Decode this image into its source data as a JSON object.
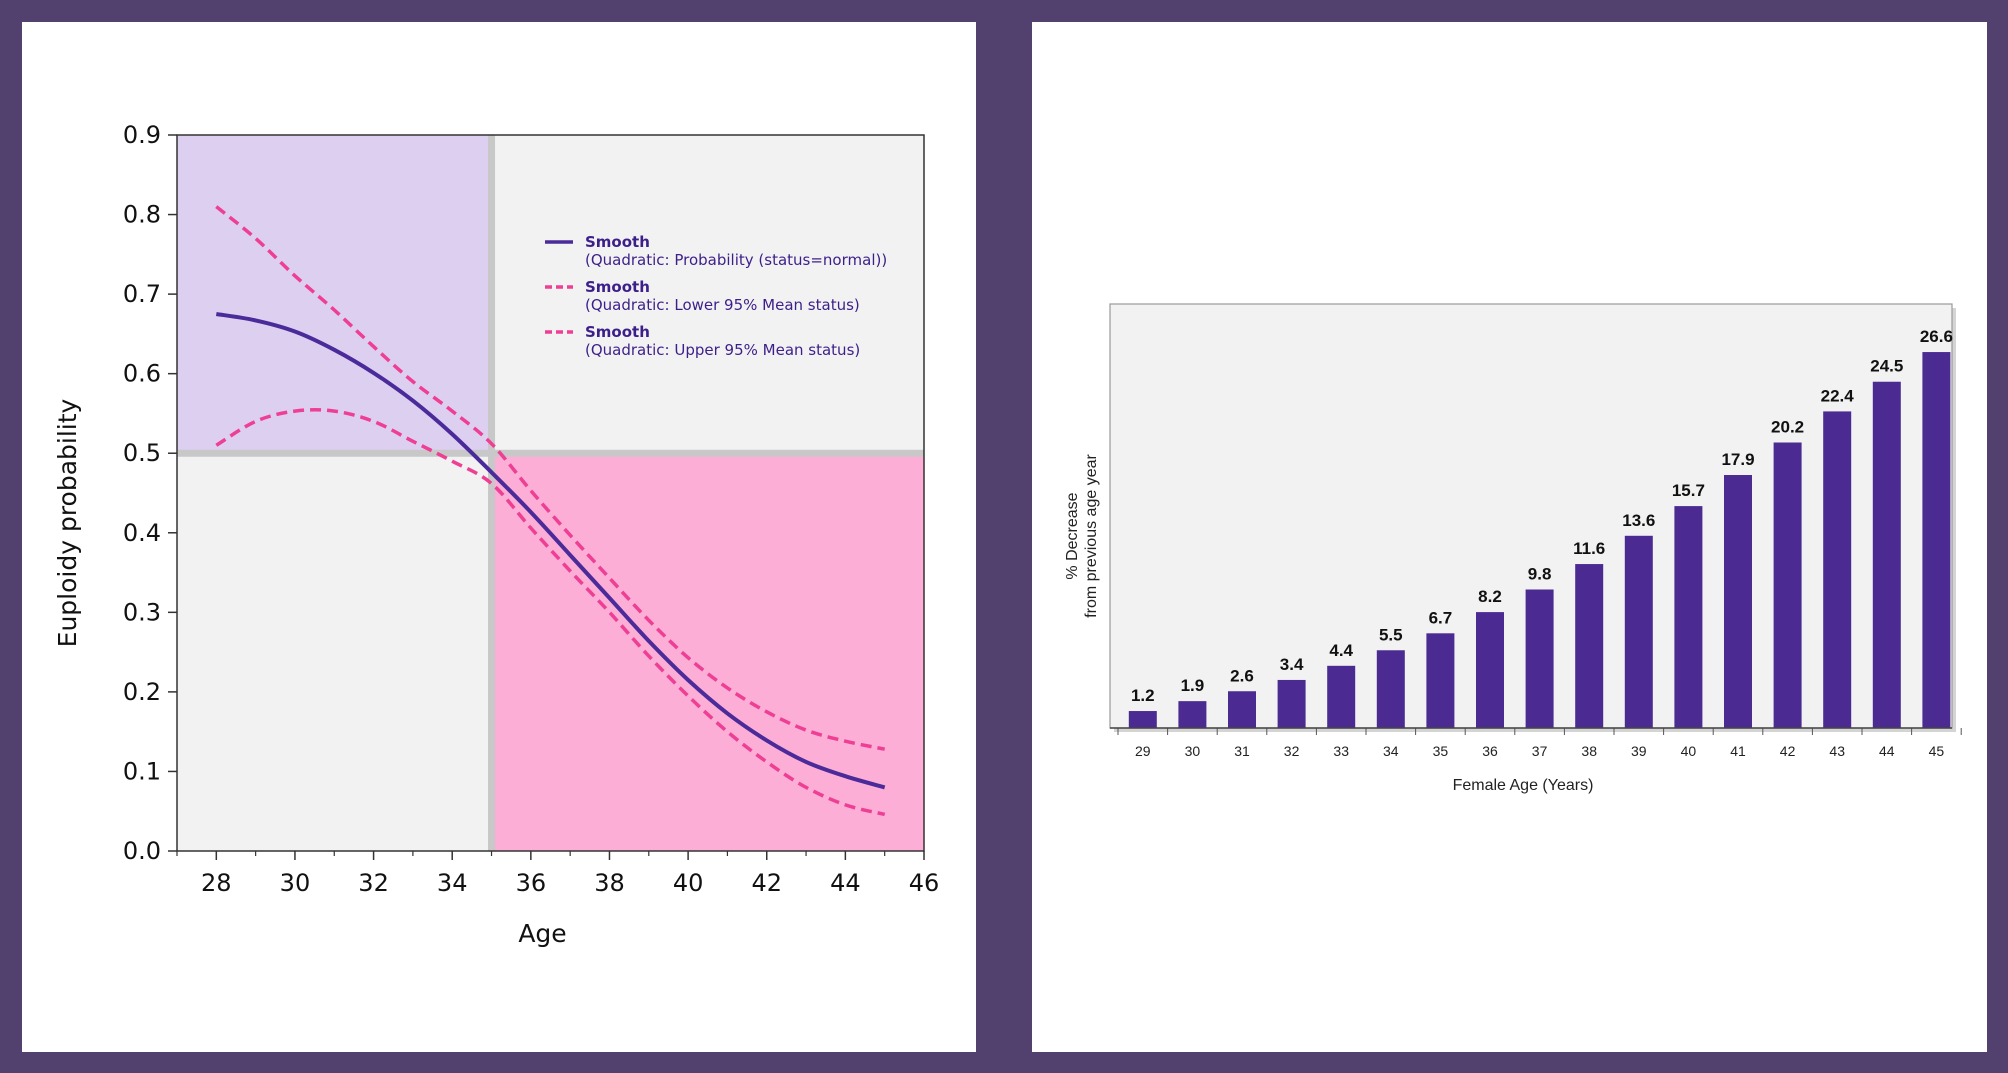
{
  "chart_data": [
    {
      "type": "line",
      "xlabel": "Age",
      "ylabel": "Euploidy probability",
      "xlim": [
        27,
        46
      ],
      "ylim": [
        0,
        0.9
      ],
      "xticks": [
        "28",
        "30",
        "32",
        "34",
        "36",
        "38",
        "40",
        "42",
        "44",
        "46"
      ],
      "yticks": [
        "0.0",
        "0.1",
        "0.2",
        "0.3",
        "0.4",
        "0.5",
        "0.6",
        "0.7",
        "0.8",
        "0.9"
      ],
      "threshold_x": 35,
      "threshold_y": 0.5,
      "colors": {
        "quad_top_left": "#dccff0",
        "quad_top_right": "#f2f2f2",
        "quad_bottom_left": "#f2f2f2",
        "quad_bottom_right": "#fcaed6",
        "divider": "#c8c8c8",
        "solid": "#4b2a9a",
        "dashed": "#ee3f94"
      },
      "x": [
        28,
        29,
        30,
        31,
        32,
        33,
        34,
        35,
        36,
        37,
        38,
        39,
        40,
        41,
        42,
        43,
        44,
        45
      ],
      "series": [
        {
          "name": "Smooth",
          "detail": "(Quadratic: Probability (status=normal))",
          "style": "solid",
          "values": [
            0.675,
            0.667,
            0.653,
            0.63,
            0.601,
            0.566,
            0.524,
            0.476,
            0.426,
            0.372,
            0.318,
            0.264,
            0.215,
            0.173,
            0.139,
            0.112,
            0.094,
            0.08
          ]
        },
        {
          "name": "Smooth",
          "detail": "(Quadratic: Lower 95% Mean status)",
          "style": "dashed",
          "values": [
            0.51,
            0.54,
            0.553,
            0.553,
            0.54,
            0.515,
            0.49,
            0.462,
            0.406,
            0.352,
            0.3,
            0.245,
            0.195,
            0.15,
            0.112,
            0.08,
            0.058,
            0.046
          ]
        },
        {
          "name": "Smooth",
          "detail": "(Quadratic: Upper 95% Mean status)",
          "style": "dashed",
          "values": [
            0.81,
            0.77,
            0.723,
            0.68,
            0.634,
            0.59,
            0.553,
            0.512,
            0.453,
            0.397,
            0.343,
            0.29,
            0.243,
            0.205,
            0.175,
            0.152,
            0.138,
            0.128
          ]
        }
      ]
    },
    {
      "type": "bar",
      "xlabel": "Female Age (Years)",
      "ylabel_line1": "% Decrease",
      "ylabel_line2": "from previous age year",
      "ylim": [
        0,
        30
      ],
      "color": "#4b2a92",
      "categories": [
        "29",
        "30",
        "31",
        "32",
        "33",
        "34",
        "35",
        "36",
        "37",
        "38",
        "39",
        "40",
        "41",
        "42",
        "43",
        "44",
        "45"
      ],
      "values": [
        1.2,
        1.9,
        2.6,
        3.4,
        4.4,
        5.5,
        6.7,
        8.2,
        9.8,
        11.6,
        13.6,
        15.7,
        17.9,
        20.2,
        22.4,
        24.5,
        26.6
      ],
      "labels": [
        "1.2",
        "1.9",
        "2.6",
        "3.4",
        "4.4",
        "5.5",
        "6.7",
        "8.2",
        "9.8",
        "11.6",
        "13.6",
        "15.7",
        "17.9",
        "20.2",
        "22.4",
        "24.5",
        "26.6"
      ]
    }
  ]
}
